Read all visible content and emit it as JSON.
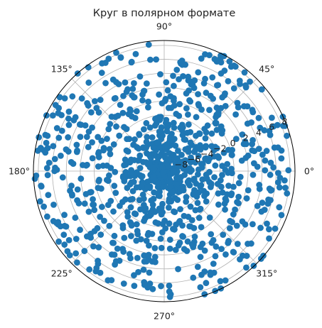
{
  "chart_data": {
    "type": "scatter",
    "projection": "polar",
    "title": "Круг в полярном формате",
    "grid": true,
    "marker_color": "#1f77b4",
    "rlim": [
      -10,
      8.7
    ],
    "r_ticks": [
      {
        "value": -8,
        "label": "−8"
      },
      {
        "value": -6,
        "label": "−6"
      },
      {
        "value": -4,
        "label": "−4"
      },
      {
        "value": -2,
        "label": "−2"
      },
      {
        "value": 0,
        "label": "0"
      },
      {
        "value": 2,
        "label": "2"
      },
      {
        "value": 4,
        "label": "4"
      },
      {
        "value": 6,
        "label": "6"
      },
      {
        "value": 8,
        "label": "8"
      }
    ],
    "theta_ticks": [
      {
        "deg": 0,
        "label": "0°"
      },
      {
        "deg": 45,
        "label": "45°"
      },
      {
        "deg": 90,
        "label": "90°"
      },
      {
        "deg": 135,
        "label": "135°"
      },
      {
        "deg": 180,
        "label": "180°"
      },
      {
        "deg": 225,
        "label": "225°"
      },
      {
        "deg": 270,
        "label": "270°"
      },
      {
        "deg": 315,
        "label": "315°"
      }
    ],
    "points_summary": {
      "count": 1000,
      "theta_range_deg": [
        0,
        360
      ],
      "r_range": [
        -10,
        8.7
      ]
    }
  }
}
